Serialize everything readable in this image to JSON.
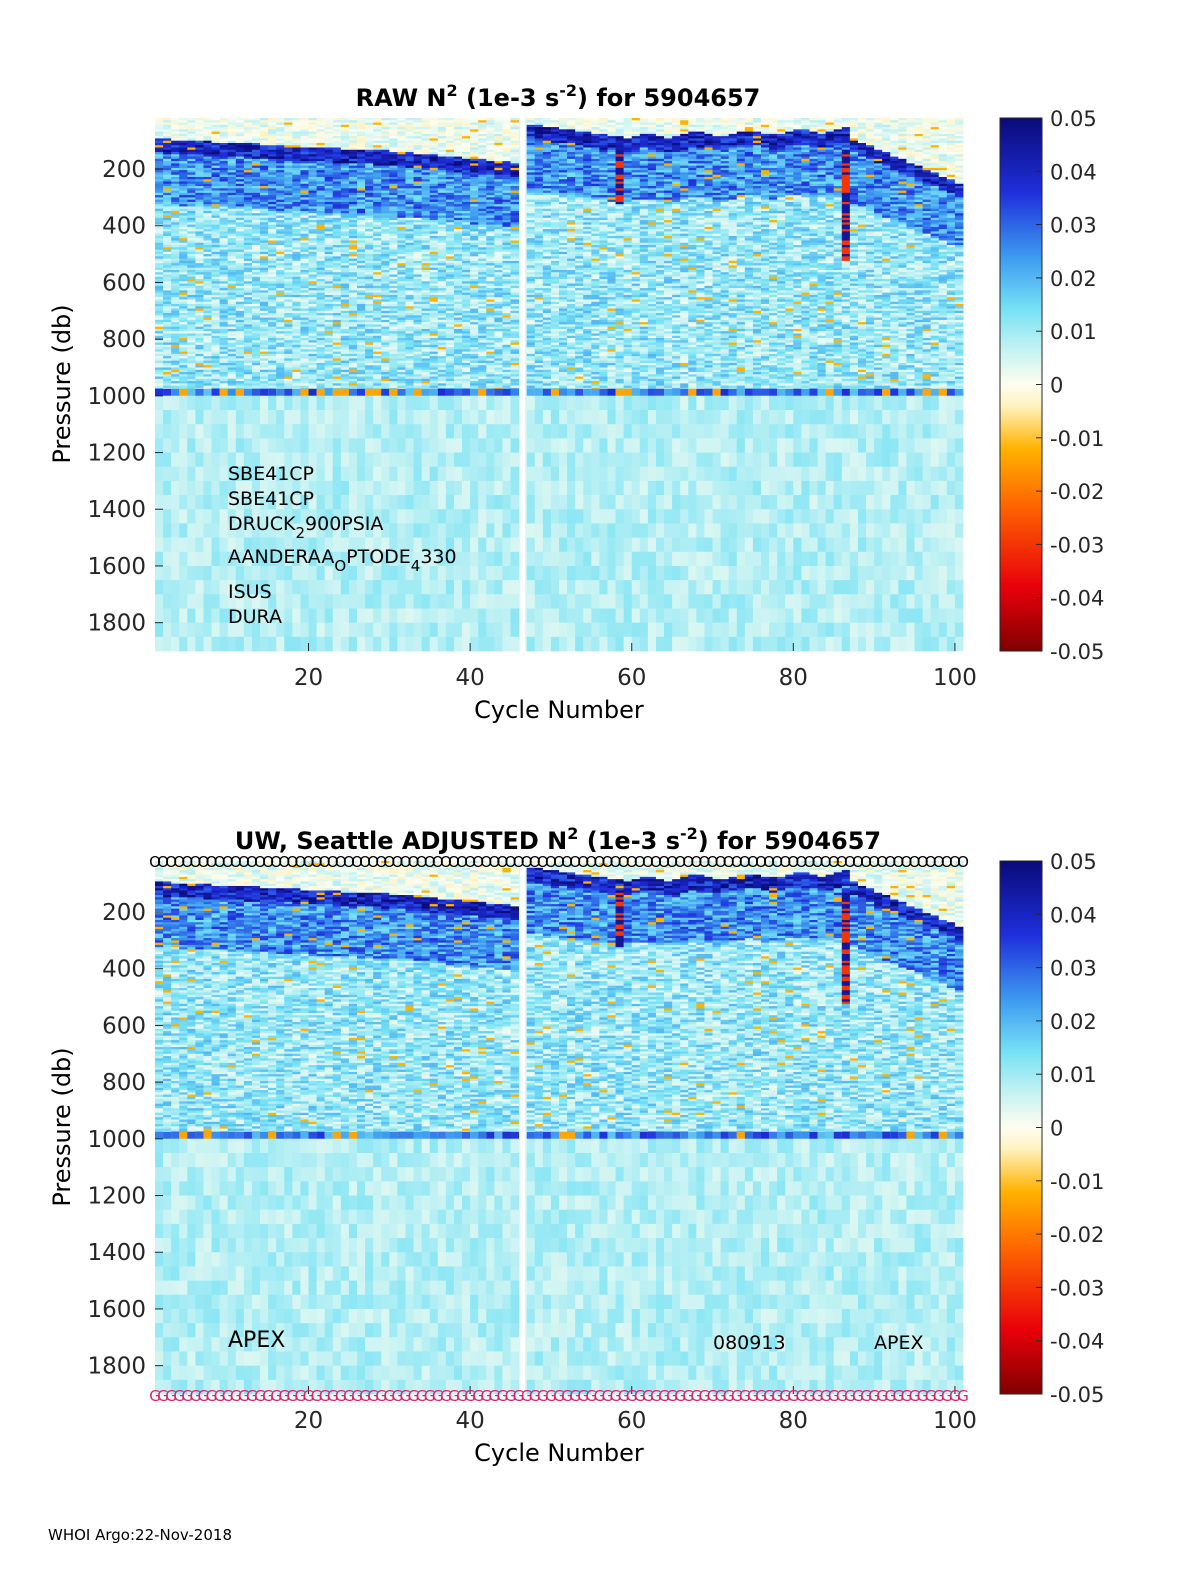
{
  "footer": "WHOI Argo:22-Nov-2018",
  "chart_data": [
    {
      "type": "heatmap",
      "title": {
        "prefix": "RAW N",
        "sup1": "2",
        "mid": " (1e-3 s",
        "sup2": "-2",
        "suffix": ") for 5904657"
      },
      "xlabel": "Cycle Number",
      "ylabel": "Pressure (db)",
      "xlim": [
        1,
        101
      ],
      "ylim": [
        1900,
        20
      ],
      "y_reversed": true,
      "xticks": [
        20,
        40,
        60,
        80,
        100
      ],
      "yticks": [
        200,
        400,
        600,
        800,
        1000,
        1200,
        1400,
        1600,
        1800
      ],
      "colorbar": {
        "min": -0.05,
        "max": 0.05,
        "ticks": [
          "0.05",
          "0.04",
          "0.03",
          "0.02",
          "0.01",
          "0",
          "-0.01",
          "-0.02",
          "-0.03",
          "-0.04",
          "-0.05"
        ]
      },
      "colormap": "blue-cyan-white-orange-red (jet-like, centred at 0)",
      "gap_cycle": 46,
      "bad_cycles": [
        58,
        86
      ],
      "annotations": [
        {
          "base": "SBE41CP"
        },
        {
          "base": "SBE41CP"
        },
        {
          "base": "DRUCK",
          "sub": "2",
          "rest": "900PSIA"
        },
        {
          "base": "AANDERAA",
          "sub": "O",
          "rest": "PTODE",
          "sub2": "4",
          "rest2": "330"
        },
        {
          "base": "ISUS"
        },
        {
          "base": "DURA"
        }
      ]
    },
    {
      "type": "heatmap",
      "title": {
        "prefix": "UW, Seattle  ADJUSTED N",
        "sup1": "2",
        "mid": " (1e-3 s",
        "sup2": "-2",
        "suffix": ") for 5904657"
      },
      "xlabel": "Cycle Number",
      "ylabel": "Pressure (db)",
      "xlim": [
        1,
        101
      ],
      "ylim": [
        1900,
        20
      ],
      "y_reversed": true,
      "xticks": [
        20,
        40,
        60,
        80,
        100
      ],
      "yticks": [
        200,
        400,
        600,
        800,
        1000,
        1200,
        1400,
        1600,
        1800
      ],
      "colorbar": {
        "min": -0.05,
        "max": 0.05,
        "ticks": [
          "0.05",
          "0.04",
          "0.03",
          "0.02",
          "0.01",
          "0",
          "-0.01",
          "-0.02",
          "-0.03",
          "-0.04",
          "-0.05"
        ]
      },
      "colormap": "blue-cyan-white-orange-red (jet-like, centred at 0)",
      "gap_cycle": 46,
      "bad_cycles": [
        58,
        86
      ],
      "top_markers": "O",
      "bottom_markers": "G",
      "annotations": [
        {
          "base": "APEX"
        },
        {
          "base": "080913"
        },
        {
          "base": "APEX"
        }
      ]
    }
  ]
}
